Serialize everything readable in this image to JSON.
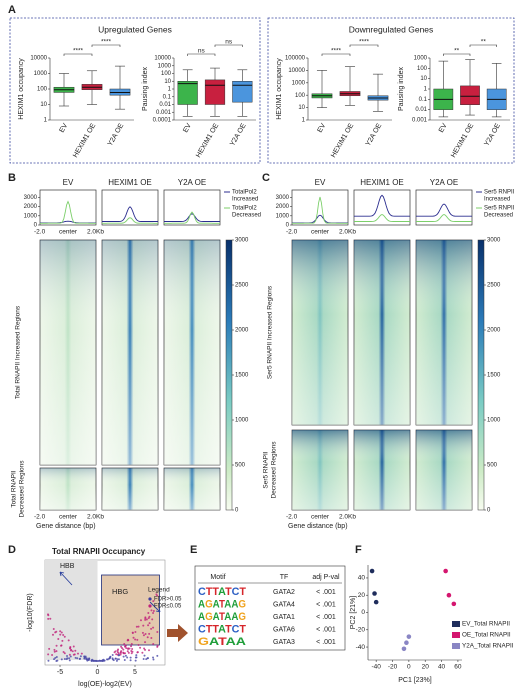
{
  "figure_labels": [
    "A",
    "B",
    "C",
    "D",
    "E",
    "F"
  ],
  "panel_a": {
    "groups": [
      {
        "title": "Upregulated Genes",
        "charts": [
          {
            "type": "box",
            "y_label": "HEXIM1 occupancy",
            "log_scale": true,
            "ylim": [
              1,
              10000
            ],
            "yticks": [
              1,
              10,
              100,
              1000,
              10000
            ],
            "categories": [
              "EV",
              "HEXIM1 OE",
              "Y2A OE"
            ],
            "colors": [
              "#3cb44b",
              "#c8203f",
              "#4b95dd"
            ],
            "min": [
              8,
              10,
              5
            ],
            "q1": [
              60,
              90,
              40
            ],
            "median": [
              90,
              130,
              60
            ],
            "q3": [
              130,
              200,
              100
            ],
            "max": [
              1000,
              1500,
              3000
            ],
            "brackets": [
              {
                "from": "EV",
                "to": "HEXIM1 OE",
                "label": "****"
              },
              {
                "from": "HEXIM1 OE",
                "to": "Y2A OE",
                "label": "****"
              }
            ]
          },
          {
            "type": "box",
            "y_label": "Pausing index",
            "log_scale": true,
            "ylim": [
              0.0001,
              10000
            ],
            "yticks": [
              0.0001,
              0.001,
              0.01,
              0.1,
              1,
              10,
              100,
              1000,
              10000
            ],
            "categories": [
              "EV",
              "HEXIM1 OE",
              "Y2A OE"
            ],
            "colors": [
              "#3cb44b",
              "#c8203f",
              "#4b95dd"
            ],
            "min": [
              0.0003,
              0.0003,
              0.0003
            ],
            "q1": [
              0.01,
              0.01,
              0.02
            ],
            "median": [
              5,
              3,
              3
            ],
            "q3": [
              10,
              15,
              10
            ],
            "max": [
              300,
              500,
              300
            ],
            "brackets": [
              {
                "from": "EV",
                "to": "HEXIM1 OE",
                "label": "ns"
              },
              {
                "from": "HEXIM1 OE",
                "to": "Y2A OE",
                "label": "ns"
              }
            ]
          }
        ]
      },
      {
        "title": "Downregulated Genes",
        "charts": [
          {
            "type": "box",
            "y_label": "HEXIM1 occupancy",
            "log_scale": true,
            "ylim": [
              1,
              100000
            ],
            "yticks": [
              1,
              10,
              100,
              1000,
              10000,
              100000
            ],
            "categories": [
              "EV",
              "HEXIM1 OE",
              "Y2A OE"
            ],
            "colors": [
              "#3cb44b",
              "#c8203f",
              "#4b95dd"
            ],
            "min": [
              10,
              15,
              5
            ],
            "q1": [
              60,
              90,
              40
            ],
            "median": [
              90,
              130,
              60
            ],
            "q3": [
              130,
              200,
              90
            ],
            "max": [
              10000,
              20000,
              5000
            ],
            "brackets": [
              {
                "from": "EV",
                "to": "HEXIM1 OE",
                "label": "****"
              },
              {
                "from": "HEXIM1 OE",
                "to": "Y2A OE",
                "label": "****"
              }
            ]
          },
          {
            "type": "box",
            "y_label": "Pausing index",
            "log_scale": true,
            "ylim": [
              0.001,
              1000
            ],
            "yticks": [
              0.001,
              0.01,
              0.1,
              1,
              10,
              100,
              1000
            ],
            "categories": [
              "EV",
              "HEXIM1 OE",
              "Y2A OE"
            ],
            "colors": [
              "#3cb44b",
              "#c8203f",
              "#4b95dd"
            ],
            "min": [
              0.002,
              0.003,
              0.002
            ],
            "q1": [
              0.01,
              0.03,
              0.01
            ],
            "median": [
              0.1,
              0.2,
              0.1
            ],
            "q3": [
              1,
              2,
              1
            ],
            "max": [
              500,
              700,
              300
            ],
            "brackets": [
              {
                "from": "EV",
                "to": "HEXIM1 OE",
                "label": "**"
              },
              {
                "from": "HEXIM1 OE",
                "to": "Y2A OE",
                "label": "**"
              }
            ]
          }
        ]
      }
    ]
  },
  "panel_b": {
    "columns": [
      "EV",
      "HEXIM1 OE",
      "Y2A OE"
    ],
    "profile_ylim": [
      0,
      3800
    ],
    "profile_yticks": [
      0,
      1000,
      2000,
      3000
    ],
    "profile_xticks": [
      "-2.0",
      "center",
      "2.0Kb"
    ],
    "legend": [
      {
        "name": [
          "TotalPol2",
          "Increased"
        ],
        "color": "#2b2d8f"
      },
      {
        "name": [
          "TotalPol2",
          "Decreased"
        ],
        "color": "#7ccf6a"
      }
    ],
    "row_labels": [
      [
        "Total RNAPII Increased Regions"
      ],
      [
        "Total RNAPII",
        "Decreased Regions"
      ]
    ],
    "heatmap_xticks": [
      "-2.0",
      "center",
      "2.0Kb"
    ],
    "x_label": "Gene distance (bp)",
    "colorbar_lim": [
      0,
      3000
    ],
    "colorbar_ticks": [
      0,
      500,
      1000,
      1500,
      2000,
      2500,
      3000
    ]
  },
  "panel_c": {
    "columns": [
      "EV",
      "HEXIM1 OE",
      "Y2A OE"
    ],
    "profile_ylim": [
      0,
      3800
    ],
    "profile_yticks": [
      0,
      1000,
      2000,
      3000
    ],
    "profile_xticks": [
      "-2.0",
      "center",
      "2.0Kb"
    ],
    "legend": [
      {
        "name": [
          "Ser5 RNPII",
          "Increased"
        ],
        "color": "#2b2d8f"
      },
      {
        "name": [
          "Ser5 RNPII",
          "Decreased"
        ],
        "color": "#7ccf6a"
      }
    ],
    "row_labels": [
      [
        "Ser5 RNAPII Increased Regions"
      ],
      [
        "Ser5 RNAPII",
        "Decreased Regions"
      ]
    ],
    "heatmap_xticks": [
      "-2.0",
      "center",
      "2.0Kb"
    ],
    "x_label": "Gene distance (bp)",
    "colorbar_lim": [
      0,
      3000
    ],
    "colorbar_ticks": [
      0,
      500,
      1000,
      1500,
      2000,
      2500,
      3000
    ]
  },
  "panel_d": {
    "title": "Total RNAPII Occupancy",
    "y_label": "-log10(FDR)",
    "x_label": "log(OE)-log2(EV)",
    "xlim": [
      -7,
      9
    ],
    "xticks": [
      -5,
      0,
      5
    ],
    "annotations": [
      "HBB",
      "HBG"
    ],
    "legend_title": "Legend",
    "legend": [
      {
        "name": "FDR>0.05",
        "color": "#3d3d9e"
      },
      {
        "name": "FDR≤0.05",
        "color": "#c0237a"
      }
    ]
  },
  "panel_e": {
    "headers": [
      "Motif",
      "TF",
      "adj P-val"
    ],
    "rows": [
      [
        "CTTATCT",
        "GATA2",
        "< .001"
      ],
      [
        "AGATAAG",
        "GATA4",
        "< .001"
      ],
      [
        "AGATAAG",
        "GATA1",
        "< .001"
      ],
      [
        "CTTATCT",
        "GATA6",
        "< .001"
      ],
      [
        "GATAA",
        "GATA3",
        "< .001"
      ]
    ]
  },
  "panel_f": {
    "type": "scatter",
    "x_label": "PC1 [23%]",
    "y_label": "PC2 [21%]",
    "xlim": [
      -50,
      65
    ],
    "ylim": [
      -55,
      55
    ],
    "xticks": [
      -40,
      -20,
      0,
      20,
      40,
      60
    ],
    "yticks": [
      -40,
      -20,
      0,
      20,
      40
    ],
    "series": [
      {
        "name": "EV_Total RNAPII",
        "color": "#1f2d5c",
        "x": [
          -45,
          -42,
          -40
        ],
        "y": [
          48,
          22,
          12
        ]
      },
      {
        "name": "OE_Total RNAPII",
        "color": "#d4166f",
        "x": [
          45,
          49,
          55
        ],
        "y": [
          48,
          20,
          10
        ]
      },
      {
        "name": "Y2A_Total RNAPII",
        "color": "#8a86c4",
        "x": [
          0,
          -3,
          -6
        ],
        "y": [
          -28,
          -35,
          -42
        ]
      }
    ]
  }
}
